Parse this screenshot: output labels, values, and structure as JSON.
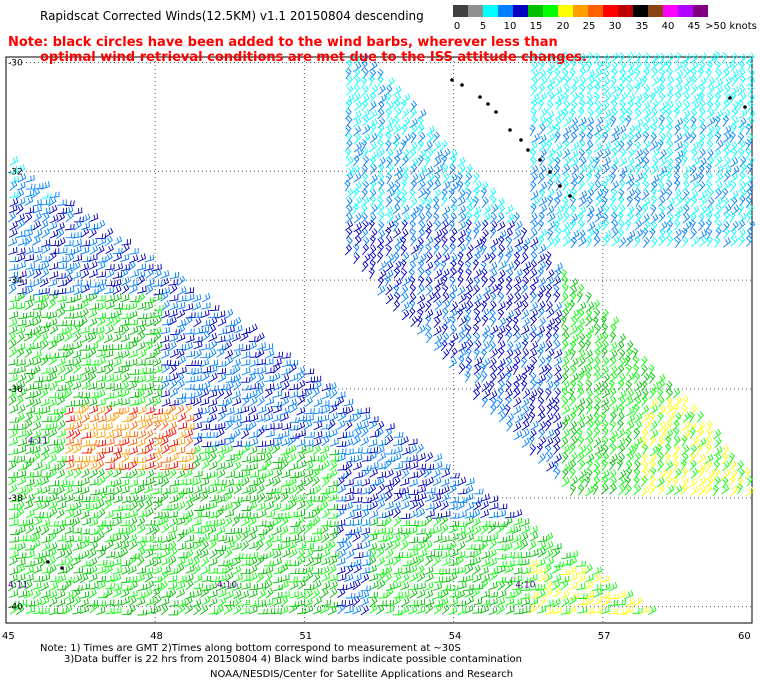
{
  "title": "Rapidscat Corrected Winds(12.5KM) v1.1 20150804 descending",
  "notes": {
    "line1": "Note: black circles have been added to the wind barbs, wherever less than",
    "line2": "optimal wind retrieval conditions are met due to the ISS attitude changes."
  },
  "legend": {
    "unit": "knots",
    "labels": [
      "0",
      "5",
      "10",
      "15",
      "20",
      "25",
      "30",
      "35",
      "40",
      "45",
      ">50 knots"
    ],
    "colors": [
      "#404040",
      "#909090",
      "#00ffff",
      "#0080ff",
      "#0000c0",
      "#00c000",
      "#00ff00",
      "#ffff00",
      "#ffa000",
      "#ff6000",
      "#ff0000",
      "#c00000",
      "#000000",
      "#8b4513",
      "#ff00ff",
      "#b000ff",
      "#800080"
    ]
  },
  "chart_data": {
    "type": "scatter",
    "title": "Rapidscat Corrected Winds(12.5KM) v1.1 20150804 descending",
    "x_ticks": [
      "45",
      "48",
      "51",
      "54",
      "57",
      "60"
    ],
    "y_ticks": [
      "-30",
      "-32",
      "-34",
      "-36",
      "-38",
      "-40"
    ],
    "xlim": [
      45,
      60
    ],
    "ylim": [
      -40.3,
      -29.9
    ],
    "grid": true,
    "time_labels": [
      {
        "label": "4:11",
        "lon": 45.0,
        "lat": -39.65
      },
      {
        "label": "4:10",
        "lon": 49.2,
        "lat": -39.65
      },
      {
        "label": "4:10",
        "lon": 55.2,
        "lat": -39.65
      },
      {
        "label": "4:11",
        "lon": 45.4,
        "lat": -37.0
      }
    ],
    "swaths": [
      {
        "name": "swath-east",
        "speed_band": "5-15 knots (light/dark blue) north, 15-25 knots (green) south, 25-30 knots (yellow) southeast corner",
        "contaminated_region": "black barbs near 52-55E, 30-32S"
      },
      {
        "name": "swath-west",
        "speed_band": "10-15 knots (blue) north, 15-25 knots (green) south and west, yellow/orange/red pockets near 45-48E, 36.5-37S"
      }
    ]
  },
  "footer": {
    "line1": "Note: 1) Times are GMT 2)Times along bottom correspond to measurement at ~30S",
    "line2": "3)Data buffer is 22 hrs from 20150804 4) Black wind barbs indicate possible contamination",
    "line3": "NOAA/NESDIS/Center for Satellite Applications and Research"
  }
}
